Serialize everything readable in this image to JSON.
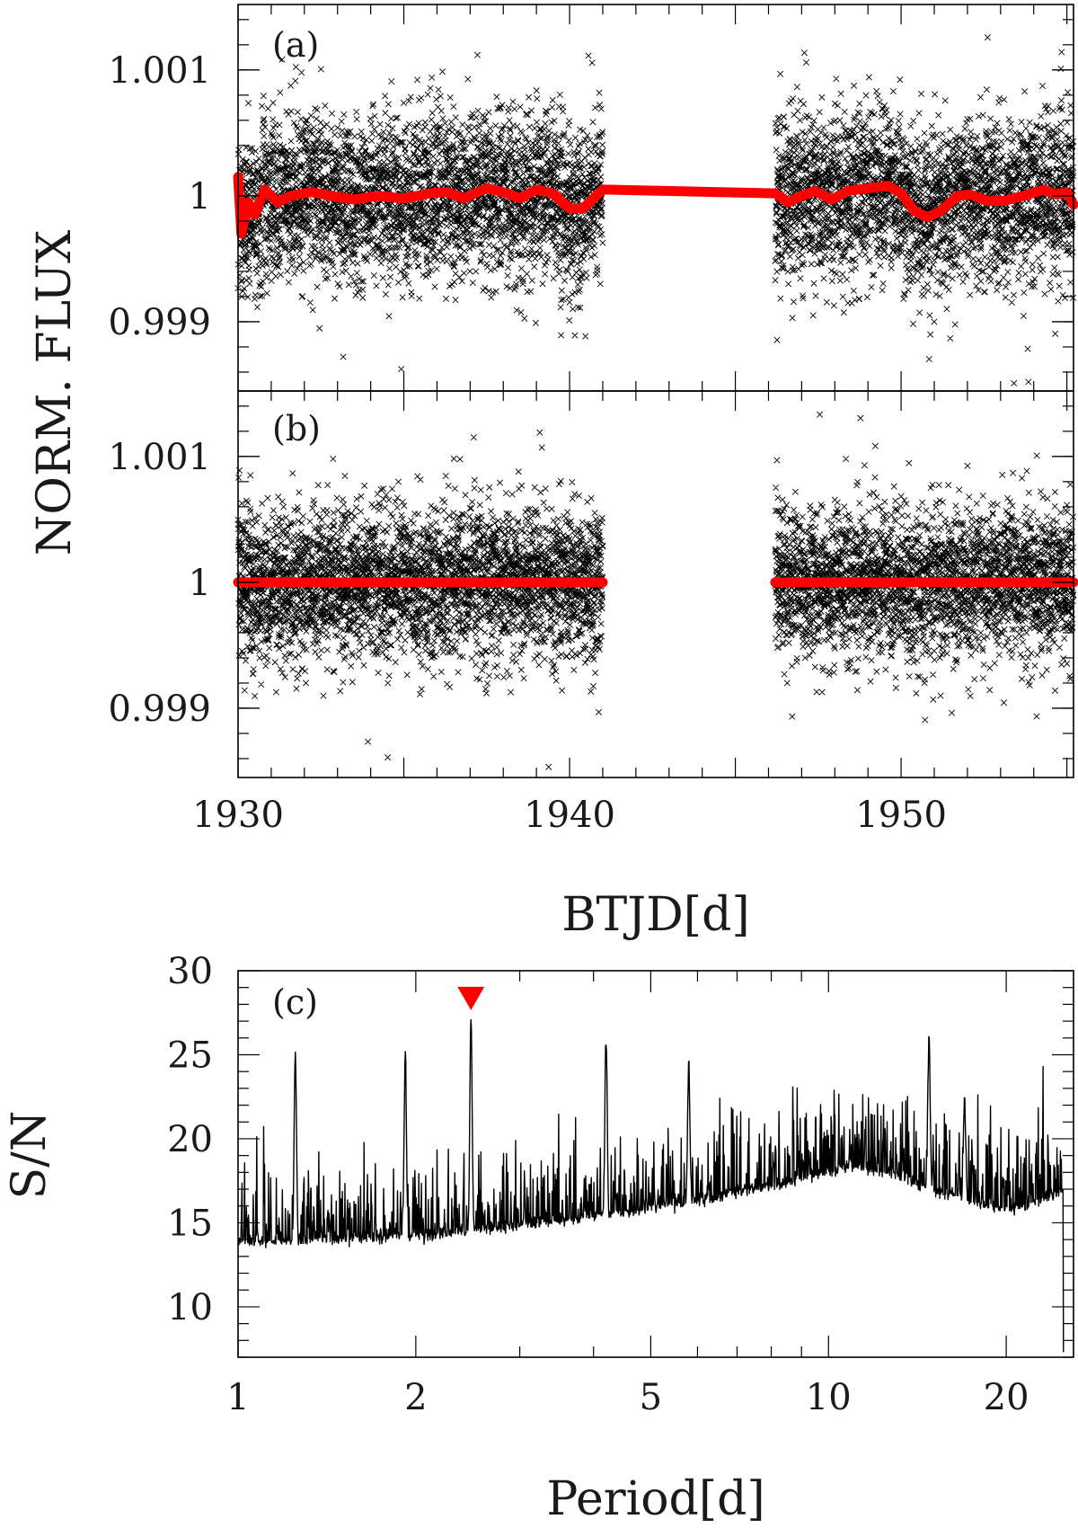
{
  "chart_data": [
    {
      "type": "scatter",
      "panel_label": "(a)",
      "xlim": [
        1930,
        1955.2
      ],
      "ylim": [
        0.99845,
        1.00152
      ],
      "ylabel": "NORM. FLUX",
      "y_ticks": [
        {
          "value": 0.999,
          "label": "0.999"
        },
        {
          "value": 1.0,
          "label": "1"
        },
        {
          "value": 1.001,
          "label": "1.001"
        }
      ],
      "segments": [
        [
          1930.0,
          1941.0
        ],
        [
          1946.2,
          1955.2
        ]
      ],
      "scatter_color": "#000000",
      "scatter_marker": "x",
      "model_color": "#ff0000",
      "model_line": [
        [
          1930.0,
          1.00015
        ],
        [
          1930.1,
          0.9997
        ],
        [
          1930.3,
          0.99995
        ],
        [
          1930.5,
          0.99985
        ],
        [
          1930.8,
          1.00005
        ],
        [
          1931.2,
          0.99995
        ],
        [
          1931.6,
          1.0
        ],
        [
          1932.2,
          1.00003
        ],
        [
          1932.8,
          1.0
        ],
        [
          1933.5,
          0.99997
        ],
        [
          1934.2,
          1.0
        ],
        [
          1935.0,
          0.99998
        ],
        [
          1935.8,
          1.00002
        ],
        [
          1936.3,
          1.00003
        ],
        [
          1936.8,
          0.99998
        ],
        [
          1937.5,
          1.00006
        ],
        [
          1938.0,
          1.00003
        ],
        [
          1938.5,
          0.99998
        ],
        [
          1939.0,
          1.00005
        ],
        [
          1939.5,
          1.00002
        ],
        [
          1940.0,
          0.9999
        ],
        [
          1940.4,
          0.9999
        ],
        [
          1941.0,
          1.00005
        ],
        [
          1946.2,
          1.00002
        ],
        [
          1946.6,
          0.99995
        ],
        [
          1947.0,
          1.0
        ],
        [
          1947.4,
          1.00004
        ],
        [
          1947.9,
          0.99997
        ],
        [
          1948.4,
          1.00004
        ],
        [
          1949.0,
          1.00006
        ],
        [
          1949.6,
          1.00008
        ],
        [
          1950.0,
          1.00002
        ],
        [
          1950.4,
          0.99988
        ],
        [
          1950.8,
          0.99983
        ],
        [
          1951.2,
          0.99988
        ],
        [
          1951.7,
          1.0
        ],
        [
          1952.1,
          1.00001
        ],
        [
          1952.6,
          0.99996
        ],
        [
          1953.1,
          0.99996
        ],
        [
          1953.7,
          1.0
        ],
        [
          1954.3,
          1.00005
        ],
        [
          1954.7,
          1.00001
        ],
        [
          1955.0,
          1.00003
        ],
        [
          1955.2,
          0.99993
        ]
      ]
    },
    {
      "type": "scatter",
      "panel_label": "(b)",
      "xlim": [
        1930,
        1955.2
      ],
      "ylim": [
        0.99845,
        1.00152
      ],
      "xlabel": "BTJD[d]",
      "x_ticks": [
        {
          "value": 1930,
          "label": "1930"
        },
        {
          "value": 1940,
          "label": "1940"
        },
        {
          "value": 1950,
          "label": "1950"
        }
      ],
      "y_ticks": [
        {
          "value": 0.999,
          "label": "0.999"
        },
        {
          "value": 1.0,
          "label": "1"
        },
        {
          "value": 1.001,
          "label": "1.001"
        }
      ],
      "segments": [
        [
          1930.0,
          1941.0
        ],
        [
          1946.2,
          1955.2
        ]
      ],
      "scatter_color": "#000000",
      "scatter_marker": "x",
      "model_color": "#ff0000",
      "model_line": [
        [
          1930.0,
          1.0
        ],
        [
          1941.0,
          1.0
        ],
        null,
        [
          1946.2,
          1.0
        ],
        [
          1955.2,
          1.0
        ]
      ]
    },
    {
      "type": "line",
      "panel_label": "(c)",
      "xscale": "log",
      "xlim": [
        1,
        26
      ],
      "ylim": [
        7,
        30
      ],
      "xlabel": "Period[d]",
      "ylabel": "S/N",
      "x_ticks": [
        {
          "value": 1,
          "label": "1"
        },
        {
          "value": 2,
          "label": "2"
        },
        {
          "value": 5,
          "label": "5"
        },
        {
          "value": 10,
          "label": "10"
        },
        {
          "value": 20,
          "label": "20"
        }
      ],
      "y_ticks": [
        {
          "value": 10,
          "label": "10"
        },
        {
          "value": 15,
          "label": "15"
        },
        {
          "value": 20,
          "label": "20"
        },
        {
          "value": 25,
          "label": "25"
        },
        {
          "value": 30,
          "label": "30"
        }
      ],
      "line_color": "#000000",
      "x_range": [
        1.0,
        25.0
      ],
      "peak_marker": {
        "x": 2.48,
        "y": 28.4,
        "color": "#ff0000"
      },
      "peaks": [
        [
          1.25,
          25.2
        ],
        [
          1.92,
          24.8
        ],
        [
          2.48,
          26.8
        ],
        [
          4.2,
          26.0
        ],
        [
          5.8,
          24.5
        ],
        [
          14.8,
          26.3
        ],
        [
          17.0,
          22.5
        ]
      ],
      "baseline": [
        [
          1.0,
          13.5
        ],
        [
          2.0,
          13.8
        ],
        [
          3.0,
          14.5
        ],
        [
          5.0,
          15.5
        ],
        [
          8.0,
          16.8
        ],
        [
          11.0,
          18.0
        ],
        [
          13.0,
          17.5
        ],
        [
          15.0,
          16.5
        ],
        [
          19.0,
          15.5
        ],
        [
          21.0,
          15.5
        ],
        [
          25.0,
          16.5
        ]
      ]
    }
  ]
}
